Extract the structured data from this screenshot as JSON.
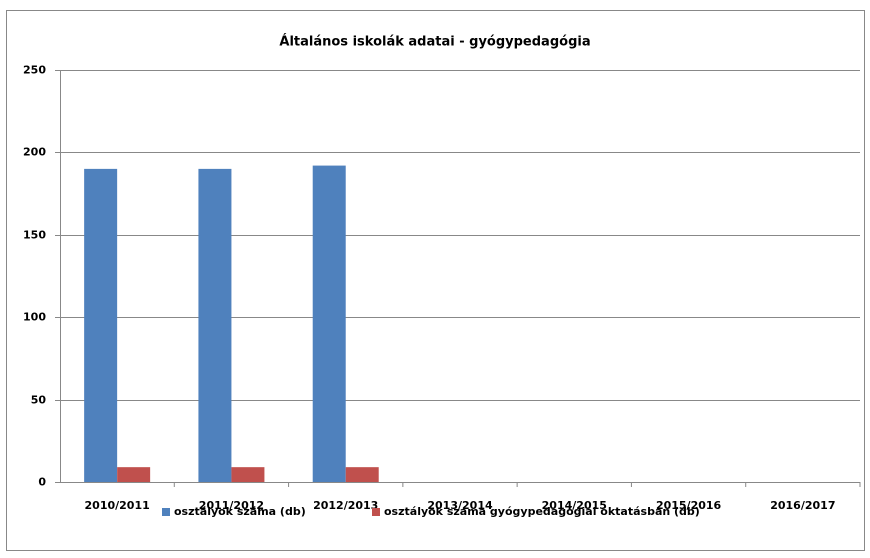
{
  "chart_data": {
    "type": "bar",
    "title": "Általános iskolák adatai - gyógypedagógia",
    "categories": [
      "2010/2011",
      "2011/2012",
      "2012/2013",
      "2013/2014",
      "2014/2015",
      "2015/2016",
      "2016/2017"
    ],
    "series": [
      {
        "name": "osztályok száma (db)",
        "color": "#4f81bd",
        "values": [
          190,
          190,
          192,
          null,
          null,
          null,
          null
        ]
      },
      {
        "name": "osztályok száma gyógypedagógiai oktatásban (db)",
        "color": "#c0504d",
        "values": [
          9,
          9,
          9,
          null,
          null,
          null,
          null
        ]
      }
    ],
    "ylim": [
      0,
      250
    ],
    "yticks": [
      0,
      50,
      100,
      150,
      200,
      250
    ],
    "grid": true,
    "legend": "bottom"
  }
}
